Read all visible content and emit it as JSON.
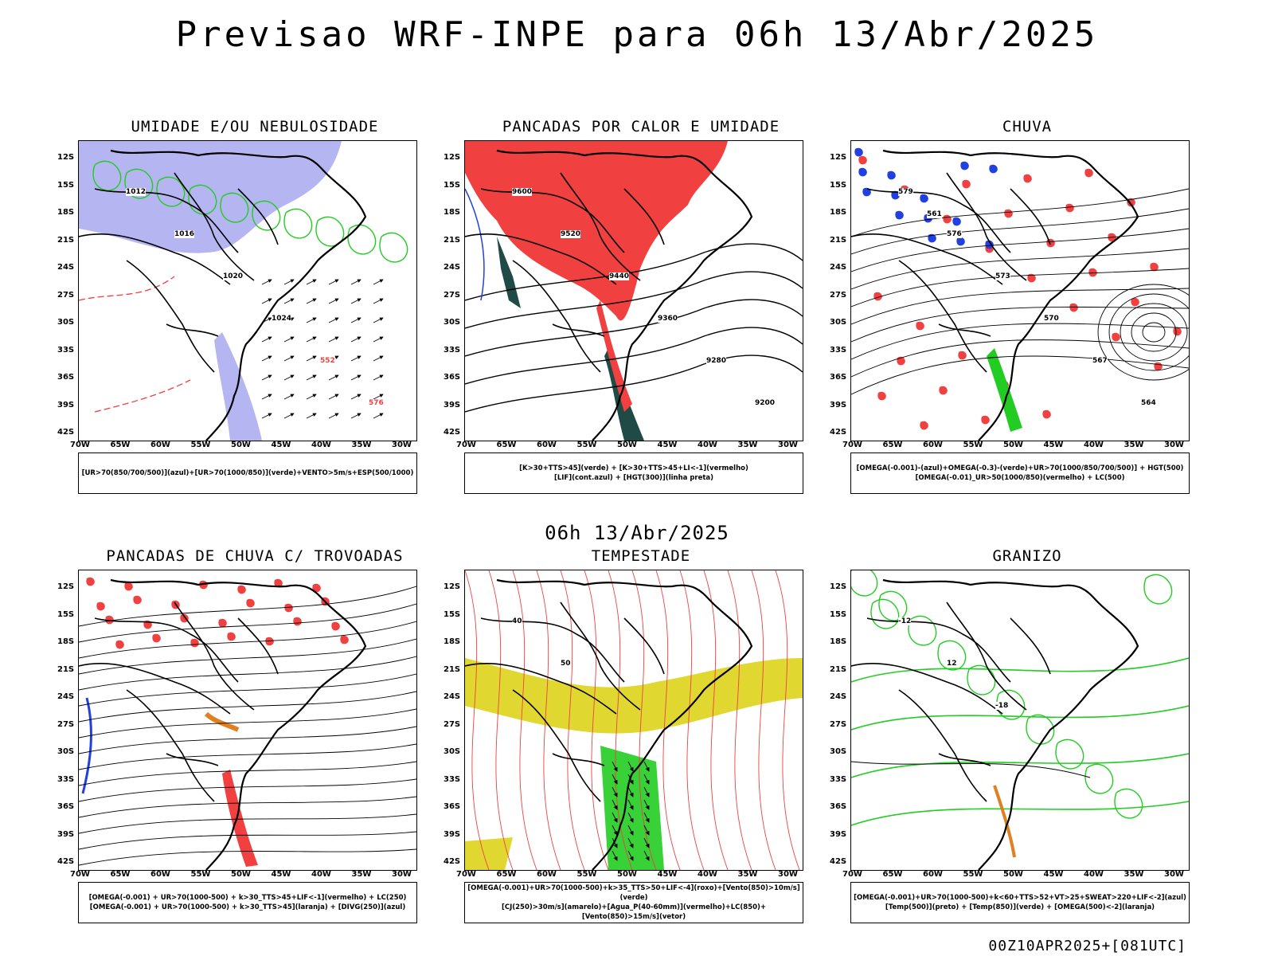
{
  "header": {
    "title": "Previsao WRF-INPE  para 06h 13/Abr/2025"
  },
  "mid_label": "06h 13/Abr/2025",
  "footer": "00Z10APR2025+[081UTC]",
  "axes": {
    "lat_ticks": [
      "12S",
      "15S",
      "18S",
      "21S",
      "24S",
      "27S",
      "30S",
      "33S",
      "36S",
      "39S",
      "42S"
    ],
    "lon_ticks": [
      "70W",
      "65W",
      "60W",
      "55W",
      "50W",
      "45W",
      "40W",
      "35W",
      "30W"
    ]
  },
  "panels": [
    {
      "title": "UMIDADE E/OU NEBULOSIDADE",
      "legend": [
        "[UR>70(850/700/500)](azul)+[UR>70(1000/850)](verde)+VENTO>5m/s+ESP(500/1000)"
      ],
      "labels": [
        "1012",
        "1016",
        "1020",
        "1024",
        "552",
        "576"
      ]
    },
    {
      "title": "PANCADAS POR CALOR E UMIDADE",
      "legend": [
        "[K>30+TTS>45](verde) + [K>30+TTS>45+LI<-1](vermelho)",
        "[LIF](cont.azul) + [HGT(300)](linha preta)"
      ],
      "labels": [
        "9600",
        "9520",
        "9440",
        "9360",
        "9280",
        "9200"
      ]
    },
    {
      "title": "CHUVA",
      "legend": [
        "[OMEGA(-0.001)-(azul)+OMEGA(-0.3)-(verde)+UR>70(1000/850/700/500)] + HGT(500)",
        "[OMEGA(-0.01)_UR>50(1000/850)(vermelho) + LC(500)"
      ],
      "labels": [
        "579",
        "576",
        "573",
        "570",
        "567",
        "564",
        "561"
      ]
    },
    {
      "title": "PANCADAS DE CHUVA C/ TROVOADAS",
      "legend": [
        "[OMEGA(-0.001) + UR>70(1000-500) + k>30_TTS>45+LIF<-1](vermelho) + LC(250)",
        "[OMEGA(-0.001) + UR>70(1000-500) + k>30_TTS>45](laranja) + [DIVG(250)](azul)"
      ],
      "labels": []
    },
    {
      "title": "TEMPESTADE",
      "legend": [
        "[OMEGA(-0.001)+UR>70(1000-500)+k>35_TTS>50+LIF<-4](roxo)+[Vento(850)>10m/s](verde)",
        "[CJ(250)>30m/s](amarelo)+[Agua_P(40-60mm)](vermelho)+LC(850)+[Vento(850)>15m/s](vetor)"
      ],
      "labels": [
        "40",
        "50"
      ]
    },
    {
      "title": "GRANIZO",
      "legend": [
        "[OMEGA(-0.001)+UR>70(1000-500)+k<60+TTS>52+VT>25+SWEAT>220+LIF<-2](azul)",
        "[Temp(500)](preto) + [Temp(850)](verde) + [OMEGA(500)<-2](laranja)"
      ],
      "labels": [
        "-12",
        "12",
        "-18"
      ]
    }
  ],
  "colors": {
    "humid_blue": "#a8a8f0",
    "green": "#22cc22",
    "red": "#f04040",
    "dark_teal": "#1f4a46",
    "yellow": "#e0d830",
    "orange": "#e08020",
    "blue": "#2040e0"
  }
}
